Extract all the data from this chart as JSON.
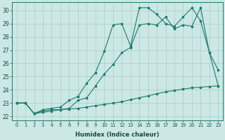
{
  "title": "",
  "xlabel": "Humidex (Indice chaleur)",
  "ylabel": "",
  "bg_color": "#cce8e4",
  "line_color": "#1a7a6e",
  "grid_color": "#aaccc8",
  "xlim": [
    -0.5,
    23.5
  ],
  "ylim": [
    21.7,
    30.6
  ],
  "xticks": [
    0,
    1,
    2,
    3,
    4,
    5,
    6,
    7,
    8,
    9,
    10,
    11,
    12,
    13,
    14,
    15,
    16,
    17,
    18,
    19,
    20,
    21,
    22,
    23
  ],
  "yticks": [
    22,
    23,
    24,
    25,
    26,
    27,
    28,
    29,
    30
  ],
  "line_top_x": [
    0,
    1,
    2,
    3,
    4,
    5,
    6,
    7,
    8,
    9,
    10,
    11,
    12,
    13,
    14,
    15,
    16,
    17,
    18,
    19,
    20,
    21,
    22,
    23
  ],
  "line_top_y": [
    23.0,
    23.0,
    22.2,
    22.5,
    22.6,
    22.7,
    23.2,
    23.5,
    24.5,
    25.3,
    26.9,
    28.9,
    29.0,
    27.3,
    30.2,
    30.2,
    29.7,
    29.0,
    28.8,
    29.5,
    30.2,
    29.2,
    26.8,
    24.3
  ],
  "line_mid_x": [
    0,
    1,
    2,
    3,
    4,
    5,
    6,
    7,
    8,
    9,
    10,
    11,
    12,
    13,
    14,
    15,
    16,
    17,
    18,
    19,
    20,
    21,
    22,
    23
  ],
  "line_mid_y": [
    23.0,
    23.0,
    22.2,
    22.4,
    22.5,
    22.5,
    22.6,
    23.2,
    23.4,
    24.3,
    25.2,
    25.9,
    26.8,
    27.2,
    28.9,
    29.0,
    28.9,
    29.5,
    28.6,
    28.9,
    28.8,
    30.2,
    26.8,
    25.5
  ],
  "line_bot_x": [
    0,
    1,
    2,
    3,
    4,
    5,
    6,
    7,
    8,
    9,
    10,
    11,
    12,
    13,
    14,
    15,
    16,
    17,
    18,
    19,
    20,
    21,
    22,
    23
  ],
  "line_bot_y": [
    23.0,
    23.0,
    22.2,
    22.3,
    22.4,
    22.5,
    22.55,
    22.6,
    22.7,
    22.8,
    22.9,
    23.0,
    23.1,
    23.25,
    23.4,
    23.55,
    23.7,
    23.85,
    23.95,
    24.05,
    24.15,
    24.2,
    24.25,
    24.3
  ]
}
